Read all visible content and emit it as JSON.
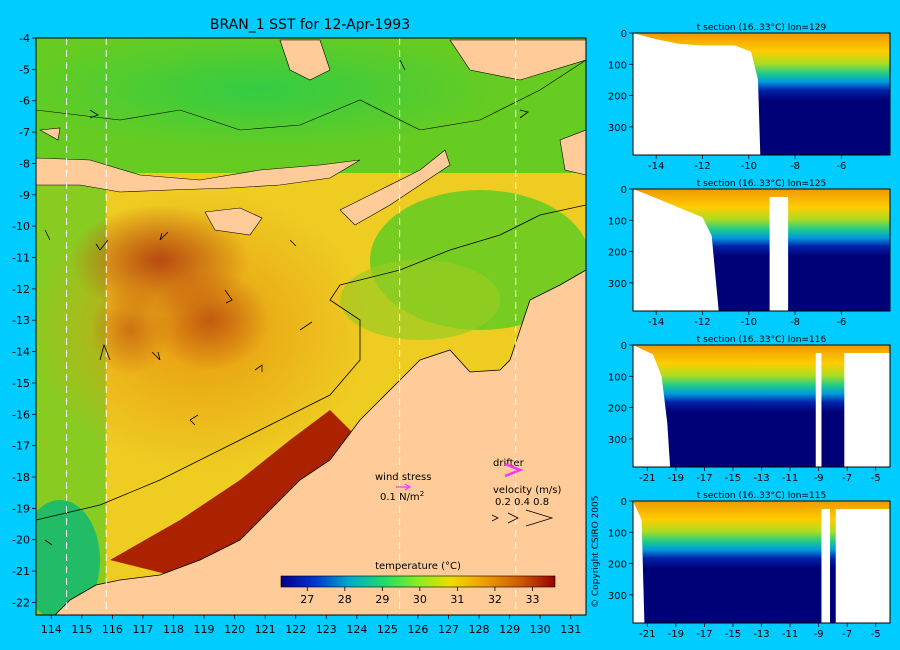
{
  "title": "BRAN_1 SST for 12-Apr-1993",
  "copyright": "© Copyright CSIRO 2005",
  "colors": {
    "background": "#00ccff",
    "land": "#ffcc99",
    "nodata": "#ffffff"
  },
  "map": {
    "x_ticks": [
      "114",
      "115",
      "116",
      "117",
      "118",
      "119",
      "120",
      "121",
      "122",
      "123",
      "124",
      "125",
      "126",
      "127",
      "128",
      "129",
      "130",
      "131"
    ],
    "y_ticks": [
      "-4",
      "-5",
      "-6",
      "-7",
      "-8",
      "-9",
      "-10",
      "-11",
      "-12",
      "-13",
      "-14",
      "-15",
      "-16",
      "-17",
      "-18",
      "-19",
      "-20",
      "-21",
      "-22"
    ],
    "section_lines_lon": [
      114.5,
      115.8,
      125.4,
      129.2
    ],
    "wind_label": "wind stress",
    "wind_value": "0.1 N/m",
    "wind_exp": "2",
    "drifter_label": "drifter",
    "velocity_label": "velocity (m/s)",
    "velocity_values": "0.2 0.4 0.8"
  },
  "colorbar": {
    "title": "temperature (°C)",
    "ticks": [
      "27",
      "28",
      "29",
      "30",
      "31",
      "32",
      "33"
    ],
    "range": [
      26.3,
      33.6
    ]
  },
  "chart_data": [
    {
      "type": "heatmap",
      "title": "BRAN_1 SST for 12-Apr-1993",
      "xlim": [
        113.5,
        131.5
      ],
      "ylim": [
        -22.4,
        -4
      ],
      "value_range_C": [
        26.3,
        33.6
      ]
    },
    {
      "type": "heatmap",
      "title": "t section (16..33°C) lon=129",
      "xlim": [
        -15,
        -3.9
      ],
      "ylim": [
        390,
        0
      ],
      "x_ticks": [
        "-14",
        "-12",
        "-10",
        "-8",
        "-6"
      ],
      "y_ticks": [
        "0",
        "100",
        "200",
        "300"
      ],
      "land_edge_lat": [
        [
          -15,
          0
        ],
        [
          -14,
          20
        ],
        [
          -13,
          35
        ],
        [
          -12,
          40
        ],
        [
          -10.6,
          40
        ],
        [
          -9.9,
          60
        ],
        [
          -9.6,
          150
        ],
        [
          -9.5,
          400
        ]
      ],
      "gaps_lat": []
    },
    {
      "type": "heatmap",
      "title": "t section (16..33°C) lon=125",
      "xlim": [
        -15,
        -3.9
      ],
      "ylim": [
        390,
        0
      ],
      "x_ticks": [
        "-14",
        "-12",
        "-10",
        "-8",
        "-6"
      ],
      "y_ticks": [
        "0",
        "100",
        "200",
        "300"
      ],
      "land_edge_lat": [
        [
          -15,
          0
        ],
        [
          -14.3,
          20
        ],
        [
          -13,
          60
        ],
        [
          -12,
          90
        ],
        [
          -11.6,
          150
        ],
        [
          -11.3,
          400
        ]
      ],
      "gaps_lat": [
        [
          -9.1,
          -8.3
        ]
      ]
    },
    {
      "type": "heatmap",
      "title": "t section (16..33°C) lon=116",
      "xlim": [
        -22,
        -4
      ],
      "ylim": [
        390,
        0
      ],
      "x_ticks": [
        "-21",
        "-19",
        "-17",
        "-15",
        "-13",
        "-11",
        "-9",
        "-7",
        "-5"
      ],
      "y_ticks": [
        "0",
        "100",
        "200",
        "300"
      ],
      "land_edge_lat": [
        [
          -22,
          0
        ],
        [
          -20.6,
          30
        ],
        [
          -20,
          100
        ],
        [
          -19.6,
          250
        ],
        [
          -19.4,
          400
        ]
      ],
      "gaps_lat": [
        [
          -9.2,
          -8.8
        ],
        [
          -7.2,
          -4
        ]
      ]
    },
    {
      "type": "heatmap",
      "title": "t section (16..33°C) lon=115",
      "xlim": [
        -22,
        -4
      ],
      "ylim": [
        390,
        0
      ],
      "x_ticks": [
        "-21",
        "-19",
        "-17",
        "-15",
        "-13",
        "-11",
        "-9",
        "-7",
        "-5"
      ],
      "y_ticks": [
        "0",
        "100",
        "200",
        "300"
      ],
      "land_edge_lat": [
        [
          -22,
          0
        ],
        [
          -21.4,
          60
        ],
        [
          -21.2,
          400
        ]
      ],
      "gaps_lat": [
        [
          -8.8,
          -8.2
        ],
        [
          -7.8,
          -4
        ]
      ]
    }
  ],
  "sections": [
    {
      "title": "t section (16..33°C) lon=129"
    },
    {
      "title": "t section (16..33°C) lon=125"
    },
    {
      "title": "t section (16..33°C) lon=116"
    },
    {
      "title": "t section (16..33°C) lon=115"
    }
  ]
}
